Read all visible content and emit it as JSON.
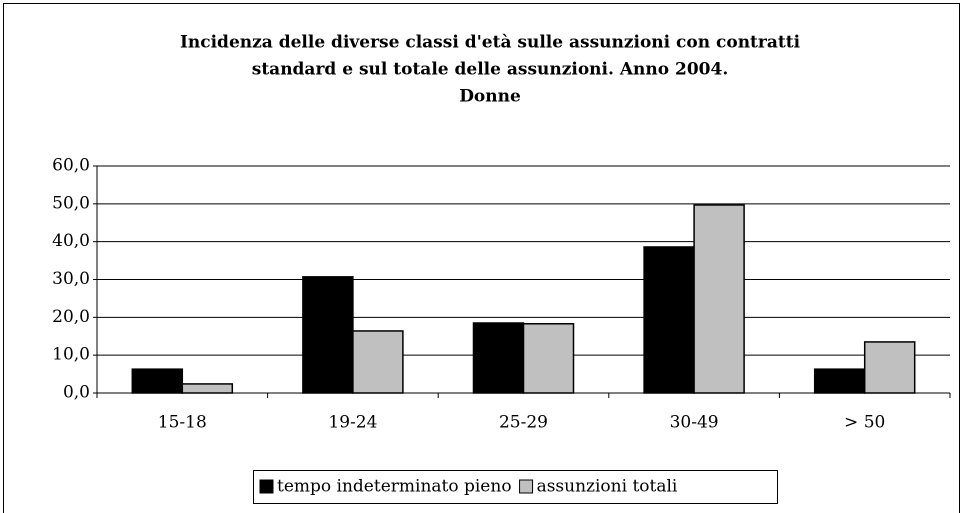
{
  "chart_data": {
    "type": "bar",
    "title": [
      "Incidenza delle diverse classi d'età sulle assunzioni con contratti",
      "standard e sul totale delle assunzioni. Anno 2004.",
      "Donne"
    ],
    "categories": [
      "15-18",
      "19-24",
      "25-29",
      "30-49",
      "> 50"
    ],
    "series": [
      {
        "name": "tempo indeterminato pieno",
        "color": "#000000",
        "values": [
          6.3,
          30.7,
          18.5,
          38.6,
          6.3
        ]
      },
      {
        "name": "assunzioni totali",
        "color": "#c0c0c0",
        "values": [
          2.4,
          16.4,
          18.3,
          49.7,
          13.5
        ]
      }
    ],
    "ylim": [
      0,
      60
    ],
    "yticks": [
      {
        "value": 0,
        "label": "0,0"
      },
      {
        "value": 10,
        "label": "10,0"
      },
      {
        "value": 20,
        "label": "20,0"
      },
      {
        "value": 30,
        "label": "30,0"
      },
      {
        "value": 40,
        "label": "40,0"
      },
      {
        "value": 50,
        "label": "50,0"
      },
      {
        "value": 60,
        "label": "60,0"
      }
    ],
    "grid": true,
    "legend": "bottom"
  }
}
